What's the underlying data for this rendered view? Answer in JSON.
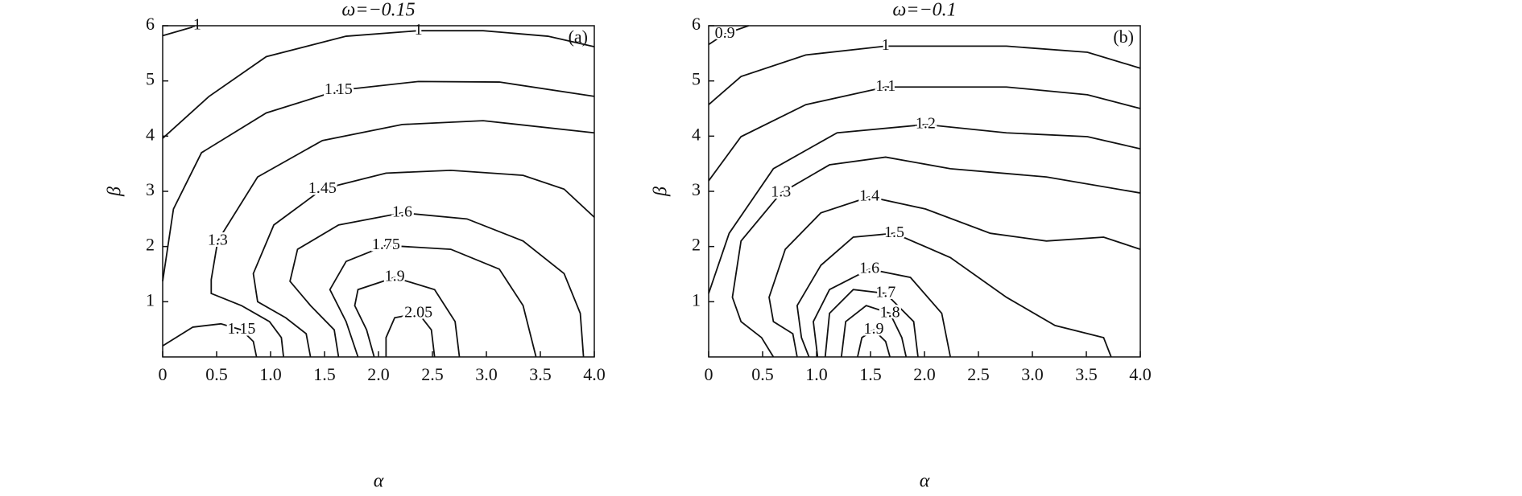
{
  "chart_data": [
    {
      "type": "contour",
      "title": "ω=−0.15",
      "panel_label": "(a)",
      "xlabel": "α",
      "ylabel": "β",
      "xlim": [
        0,
        4
      ],
      "ylim": [
        0,
        6
      ],
      "xticks": [
        0,
        0.5,
        {
          "value": 1,
          "label": "1.0"
        },
        1.5,
        {
          "value": 2,
          "label": "2.0"
        },
        2.5,
        {
          "value": 3,
          "label": "3.0"
        },
        3.5,
        {
          "value": 4,
          "label": "4.0"
        }
      ],
      "yticks": [
        1,
        2,
        3,
        4,
        5,
        6
      ],
      "contours": [
        {
          "level": 1,
          "x": [
            0,
            0.32
          ],
          "y": [
            5.82,
            6
          ]
        },
        {
          "level": 1,
          "x": [
            0,
            0.43,
            0.96,
            1.7,
            2.37,
            2.97,
            3.57,
            4
          ],
          "y": [
            3.96,
            4.72,
            5.44,
            5.81,
            5.91,
            5.91,
            5.81,
            5.62
          ]
        },
        {
          "level": 1.15,
          "x": [
            0,
            0.1,
            0.36,
            0.96,
            1.63,
            2.37,
            3.12,
            4
          ],
          "y": [
            1.37,
            2.68,
            3.7,
            4.42,
            4.83,
            4.99,
            4.98,
            4.72
          ]
        },
        {
          "level": 1.15,
          "x": [
            0,
            0.28,
            0.54,
            0.73,
            0.84,
            0.87
          ],
          "y": [
            0.2,
            0.54,
            0.6,
            0.49,
            0.28,
            0
          ]
        },
        {
          "level": 1.3,
          "x": [
            1.12,
            1.1,
            0.99,
            0.73,
            0.45,
            0.45,
            0.51,
            0.88,
            1.48,
            2.22,
            2.97,
            4
          ],
          "y": [
            0,
            0.35,
            0.64,
            0.93,
            1.15,
            1.4,
            2.1,
            3.26,
            3.92,
            4.21,
            4.28,
            4.06
          ]
        },
        {
          "level": 1.45,
          "x": [
            1.37,
            1.33,
            1.14,
            0.88,
            0.84,
            1.03,
            1.48,
            2.07,
            2.67,
            3.34,
            3.72,
            4
          ],
          "y": [
            0,
            0.42,
            0.71,
            1.0,
            1.51,
            2.39,
            3.04,
            3.33,
            3.38,
            3.29,
            3.04,
            2.53
          ]
        },
        {
          "level": 1.6,
          "x": [
            1.63,
            1.59,
            1.37,
            1.18,
            1.25,
            1.63,
            2.22,
            2.82,
            3.34,
            3.72,
            3.87,
            3.9
          ],
          "y": [
            0,
            0.49,
            0.93,
            1.37,
            1.95,
            2.39,
            2.61,
            2.5,
            2.1,
            1.51,
            0.79,
            0
          ]
        },
        {
          "level": 1.75,
          "x": [
            1.81,
            1.7,
            1.55,
            1.7,
            2.07,
            2.67,
            3.12,
            3.34,
            3.46
          ],
          "y": [
            0,
            0.64,
            1.22,
            1.73,
            2.02,
            1.95,
            1.59,
            0.93,
            0
          ]
        },
        {
          "level": 1.9,
          "x": [
            1.96,
            1.89,
            1.78,
            1.81,
            2.15,
            2.52,
            2.71,
            2.75
          ],
          "y": [
            0,
            0.49,
            0.93,
            1.22,
            1.44,
            1.22,
            0.64,
            0
          ]
        },
        {
          "level": 2.05,
          "x": [
            2.07,
            2.07,
            2.15,
            2.37,
            2.49,
            2.52
          ],
          "y": [
            0,
            0.35,
            0.71,
            0.79,
            0.49,
            0
          ]
        }
      ]
    },
    {
      "type": "contour",
      "title": "ω=−0.1",
      "panel_label": "(b)",
      "xlabel": "α",
      "ylabel": "β",
      "xlim": [
        0,
        4
      ],
      "ylim": [
        0,
        6
      ],
      "xticks": [
        0,
        0.5,
        {
          "value": 1,
          "label": "1.0"
        },
        1.5,
        {
          "value": 2,
          "label": "2.0"
        },
        2.5,
        {
          "value": 3,
          "label": "3.0"
        },
        3.5,
        {
          "value": 4,
          "label": "4.0"
        }
      ],
      "yticks": [
        1,
        2,
        3,
        4,
        5,
        6
      ],
      "contours": [
        {
          "level": 0.9,
          "x": [
            0,
            0.15,
            0.37
          ],
          "y": [
            5.66,
            5.85,
            6
          ]
        },
        {
          "level": 1,
          "x": [
            0,
            0.3,
            0.9,
            1.64,
            2.76,
            3.51,
            4
          ],
          "y": [
            4.57,
            5.08,
            5.47,
            5.63,
            5.63,
            5.52,
            5.23
          ]
        },
        {
          "level": 1.1,
          "x": [
            0,
            0.3,
            0.9,
            1.64,
            2.76,
            3.51,
            4
          ],
          "y": [
            3.19,
            3.99,
            4.57,
            4.89,
            4.89,
            4.75,
            4.5
          ]
        },
        {
          "level": 1.2,
          "x": [
            0,
            0.19,
            0.6,
            1.19,
            2.01,
            2.76,
            3.51,
            4
          ],
          "y": [
            1.15,
            2.24,
            3.41,
            4.06,
            4.21,
            4.06,
            3.99,
            3.77
          ]
        },
        {
          "level": 1.3,
          "x": [
            0.6,
            0.49,
            0.3,
            0.22,
            0.3,
            0.67,
            1.12,
            1.64,
            2.24,
            3.13,
            4
          ],
          "y": [
            0,
            0.35,
            0.64,
            1.08,
            2.1,
            2.97,
            3.48,
            3.62,
            3.41,
            3.26,
            2.97
          ]
        },
        {
          "level": 1.4,
          "x": [
            0.82,
            0.78,
            0.6,
            0.56,
            0.71,
            1.04,
            1.49,
            2.01,
            2.61,
            3.13,
            3.66,
            4
          ],
          "y": [
            0,
            0.42,
            0.64,
            1.08,
            1.95,
            2.61,
            2.9,
            2.68,
            2.24,
            2.1,
            2.17,
            1.95
          ]
        },
        {
          "level": 1.5,
          "x": [
            0.93,
            0.86,
            0.82,
            1.04,
            1.34,
            1.72,
            2.24,
            2.76,
            3.21,
            3.66,
            3.73
          ],
          "y": [
            0,
            0.35,
            0.93,
            1.66,
            2.17,
            2.24,
            1.8,
            1.08,
            0.57,
            0.35,
            0
          ]
        },
        {
          "level": 1.6,
          "x": [
            1.01,
            0.97,
            1.12,
            1.49,
            1.87,
            2.16,
            2.24
          ],
          "y": [
            0,
            0.64,
            1.22,
            1.59,
            1.44,
            0.79,
            0
          ]
        },
        {
          "level": 1.7,
          "x": [
            1.08,
            1.12,
            1.34,
            1.64,
            1.9,
            1.94
          ],
          "y": [
            0,
            0.79,
            1.22,
            1.15,
            0.64,
            0
          ]
        },
        {
          "level": 1.8,
          "x": [
            1.23,
            1.27,
            1.46,
            1.68,
            1.79,
            1.83
          ],
          "y": [
            0,
            0.64,
            0.93,
            0.79,
            0.35,
            0
          ]
        },
        {
          "level": 1.9,
          "x": [
            1.38,
            1.42,
            1.53,
            1.64,
            1.68
          ],
          "y": [
            0,
            0.35,
            0.49,
            0.28,
            0
          ]
        }
      ]
    }
  ]
}
